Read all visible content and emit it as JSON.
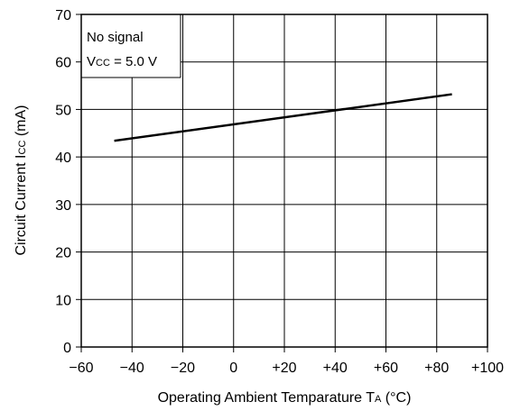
{
  "chart_data": {
    "type": "line",
    "title": "",
    "xlabel": "Operating Ambient Temparature  T",
    "xlabel_sub": "A",
    "xlabel_unit": " (°C)",
    "ylabel": "Circuit Current  I",
    "ylabel_sub": "CC",
    "ylabel_unit": " (mA)",
    "xlim": [
      -60,
      100
    ],
    "ylim": [
      0,
      70
    ],
    "x_ticks": [
      -60,
      -40,
      -20,
      0,
      20,
      40,
      60,
      80,
      100
    ],
    "x_tick_labels": [
      "−60",
      "−40",
      "−20",
      "0",
      "+20",
      "+40",
      "+60",
      "+80",
      "+100"
    ],
    "y_ticks": [
      0,
      10,
      20,
      30,
      40,
      50,
      60,
      70
    ],
    "y_tick_labels": [
      "0",
      "10",
      "20",
      "30",
      "40",
      "50",
      "60",
      "70"
    ],
    "grid": true,
    "annotation": {
      "line1": "No signal",
      "line2_prefix": "V",
      "line2_sub": "CC",
      "line2_rest": " = 5.0 V"
    },
    "series": [
      {
        "x": [
          -47,
          86
        ],
        "y": [
          43.4,
          53.2
        ]
      }
    ]
  }
}
